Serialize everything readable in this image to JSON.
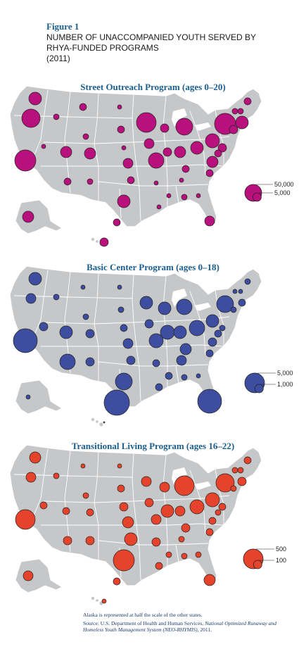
{
  "figure": {
    "label": "Figure 1",
    "title_lines": [
      "NUMBER OF UNACCOMPANIED YOUTH SERVED BY",
      "RHYA-FUNDED PROGRAMS",
      "(2011)"
    ]
  },
  "colors": {
    "land": "#c6c7c9",
    "border": "#ffffff",
    "outreach": "#b8107c",
    "basic_center": "#3d4ea0",
    "transitional": "#e5432c",
    "bubble_stroke": "#222222"
  },
  "chart_data": [
    {
      "type": "map",
      "title": "Street Outreach Program (ages 0–20)",
      "legend": {
        "placement": "bottom-right",
        "values": [
          50000,
          5000
        ],
        "labels": [
          "50,000",
          "5,000"
        ]
      }
    },
    {
      "type": "map",
      "title": "Basic Center Program (ages 0–18)",
      "legend": {
        "placement": "bottom-right",
        "values": [
          5000,
          1000
        ],
        "labels": [
          "5,000",
          "1,000"
        ]
      }
    },
    {
      "type": "map",
      "title": "Transitional Living Program (ages 16–22)",
      "legend": {
        "placement": "bottom-right",
        "values": [
          500,
          100
        ],
        "labels": [
          "500",
          "100"
        ]
      }
    }
  ],
  "footnote": {
    "alaska_note": "Alaska is represented at half the scale of the other states.",
    "source_prefix": "Source: U.S. Department of Health and Human Services, ",
    "source_italic": "National Optimized Runaway and Homeless Youth Management System (NEO-RHYMIS)",
    "source_suffix": ", 2011."
  }
}
